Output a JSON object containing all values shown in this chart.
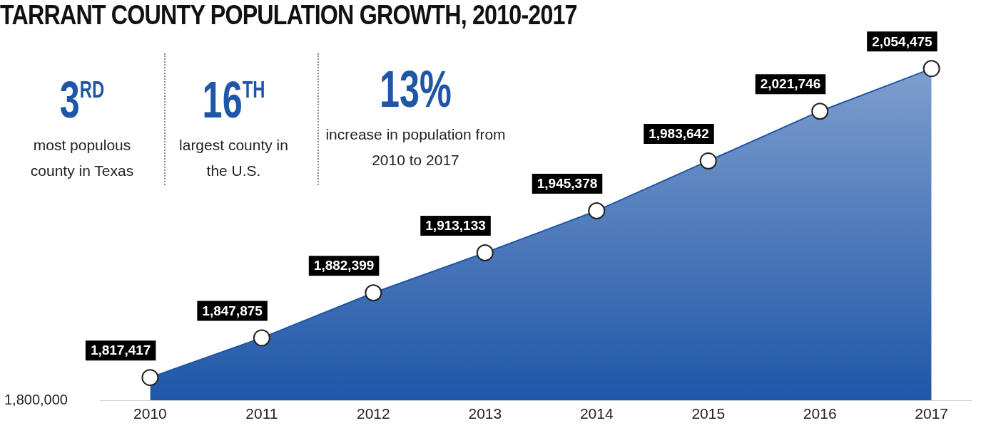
{
  "chart_data": {
    "type": "area",
    "title": "TARRANT COUNTY POPULATION GROWTH, 2010-2017",
    "x": [
      2010,
      2011,
      2012,
      2013,
      2014,
      2015,
      2016,
      2017
    ],
    "series": [
      {
        "color": "#1f56a8",
        "values": [
          1817417,
          1847875,
          1882399,
          1913133,
          1945378,
          1983642,
          2021746,
          2054475
        ],
        "value_labels": [
          "1,817,417",
          "1,847,875",
          "1,882,399",
          "1,913,133",
          "1,945,378",
          "1,983,642",
          "2,021,746",
          "2,054,475"
        ]
      }
    ],
    "xlim": [
      2009.55,
      2017.36
    ],
    "xticks": [
      2010,
      2011,
      2012,
      2013,
      2014,
      2015,
      2016,
      2017
    ],
    "marker": "circle",
    "grid": false,
    "legend": false,
    "annotations": [
      "3$^{RD}$",
      "most populous county in Texas",
      "16$^{TH}$",
      "largest county in the U.S.",
      "13%",
      "increase in population from 2010 to 2017",
      "1,800,000"
    ]
  }
}
